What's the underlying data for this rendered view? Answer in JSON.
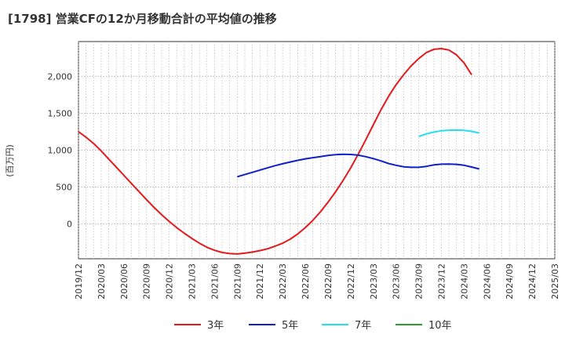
{
  "chart_data": {
    "type": "line",
    "title": "[1798]  営業CFの12か月移動合計の平均値の推移",
    "ylabel": "(百万円)",
    "xlabel": "",
    "ylim": [
      -470,
      2470
    ],
    "yticks": [
      0,
      500,
      1000,
      1500,
      2000
    ],
    "ytick_labels": [
      "0",
      "500",
      "1,000",
      "1,500",
      "2,000"
    ],
    "x_ticks": [
      "2019/12",
      "2020/03",
      "2020/06",
      "2020/09",
      "2020/12",
      "2021/03",
      "2021/06",
      "2021/09",
      "2021/12",
      "2022/03",
      "2022/06",
      "2022/09",
      "2022/12",
      "2023/03",
      "2023/06",
      "2023/09",
      "2023/12",
      "2024/03",
      "2024/06",
      "2024/09",
      "2024/12",
      "2025/03"
    ],
    "grid": true,
    "legend_position": "bottom",
    "series": [
      {
        "name": "3年",
        "color": "#e31a1c",
        "points": [
          [
            "2019/12",
            1250
          ],
          [
            "2020/01",
            1175
          ],
          [
            "2020/02",
            1090
          ],
          [
            "2020/03",
            990
          ],
          [
            "2020/04",
            880
          ],
          [
            "2020/05",
            770
          ],
          [
            "2020/06",
            660
          ],
          [
            "2020/07",
            550
          ],
          [
            "2020/08",
            440
          ],
          [
            "2020/09",
            330
          ],
          [
            "2020/10",
            225
          ],
          [
            "2020/11",
            125
          ],
          [
            "2020/12",
            35
          ],
          [
            "2021/01",
            -50
          ],
          [
            "2021/02",
            -125
          ],
          [
            "2021/03",
            -195
          ],
          [
            "2021/04",
            -260
          ],
          [
            "2021/05",
            -315
          ],
          [
            "2021/06",
            -355
          ],
          [
            "2021/07",
            -385
          ],
          [
            "2021/08",
            -400
          ],
          [
            "2021/09",
            -405
          ],
          [
            "2021/10",
            -395
          ],
          [
            "2021/11",
            -380
          ],
          [
            "2021/12",
            -360
          ],
          [
            "2022/01",
            -335
          ],
          [
            "2022/02",
            -300
          ],
          [
            "2022/03",
            -260
          ],
          [
            "2022/04",
            -205
          ],
          [
            "2022/05",
            -135
          ],
          [
            "2022/06",
            -50
          ],
          [
            "2022/07",
            50
          ],
          [
            "2022/08",
            165
          ],
          [
            "2022/09",
            295
          ],
          [
            "2022/10",
            435
          ],
          [
            "2022/11",
            590
          ],
          [
            "2022/12",
            760
          ],
          [
            "2023/01",
            945
          ],
          [
            "2023/02",
            1140
          ],
          [
            "2023/03",
            1345
          ],
          [
            "2023/04",
            1545
          ],
          [
            "2023/05",
            1725
          ],
          [
            "2023/06",
            1885
          ],
          [
            "2023/07",
            2020
          ],
          [
            "2023/08",
            2140
          ],
          [
            "2023/09",
            2240
          ],
          [
            "2023/10",
            2320
          ],
          [
            "2023/11",
            2365
          ],
          [
            "2023/12",
            2375
          ],
          [
            "2024/01",
            2355
          ],
          [
            "2024/02",
            2290
          ],
          [
            "2024/03",
            2180
          ],
          [
            "2024/04",
            2020
          ]
        ]
      },
      {
        "name": "5年",
        "color": "#1020c8",
        "points": [
          [
            "2021/09",
            640
          ],
          [
            "2021/10",
            670
          ],
          [
            "2021/11",
            700
          ],
          [
            "2021/12",
            730
          ],
          [
            "2022/01",
            760
          ],
          [
            "2022/02",
            790
          ],
          [
            "2022/03",
            815
          ],
          [
            "2022/04",
            840
          ],
          [
            "2022/05",
            862
          ],
          [
            "2022/06",
            882
          ],
          [
            "2022/07",
            898
          ],
          [
            "2022/08",
            913
          ],
          [
            "2022/09",
            928
          ],
          [
            "2022/10",
            938
          ],
          [
            "2022/11",
            945
          ],
          [
            "2022/12",
            942
          ],
          [
            "2023/01",
            932
          ],
          [
            "2023/02",
            912
          ],
          [
            "2023/03",
            885
          ],
          [
            "2023/04",
            855
          ],
          [
            "2023/05",
            820
          ],
          [
            "2023/06",
            795
          ],
          [
            "2023/07",
            775
          ],
          [
            "2023/08",
            768
          ],
          [
            "2023/09",
            768
          ],
          [
            "2023/10",
            780
          ],
          [
            "2023/11",
            800
          ],
          [
            "2023/12",
            810
          ],
          [
            "2024/01",
            812
          ],
          [
            "2024/02",
            808
          ],
          [
            "2024/03",
            795
          ],
          [
            "2024/04",
            772
          ],
          [
            "2024/05",
            745
          ]
        ]
      },
      {
        "name": "7年",
        "color": "#22e0f0",
        "points": [
          [
            "2023/09",
            1185
          ],
          [
            "2023/10",
            1220
          ],
          [
            "2023/11",
            1245
          ],
          [
            "2023/12",
            1262
          ],
          [
            "2024/01",
            1270
          ],
          [
            "2024/02",
            1272
          ],
          [
            "2024/03",
            1268
          ],
          [
            "2024/04",
            1255
          ],
          [
            "2024/05",
            1232
          ]
        ]
      },
      {
        "name": "10年",
        "color": "#2ca02c",
        "points": []
      }
    ]
  }
}
